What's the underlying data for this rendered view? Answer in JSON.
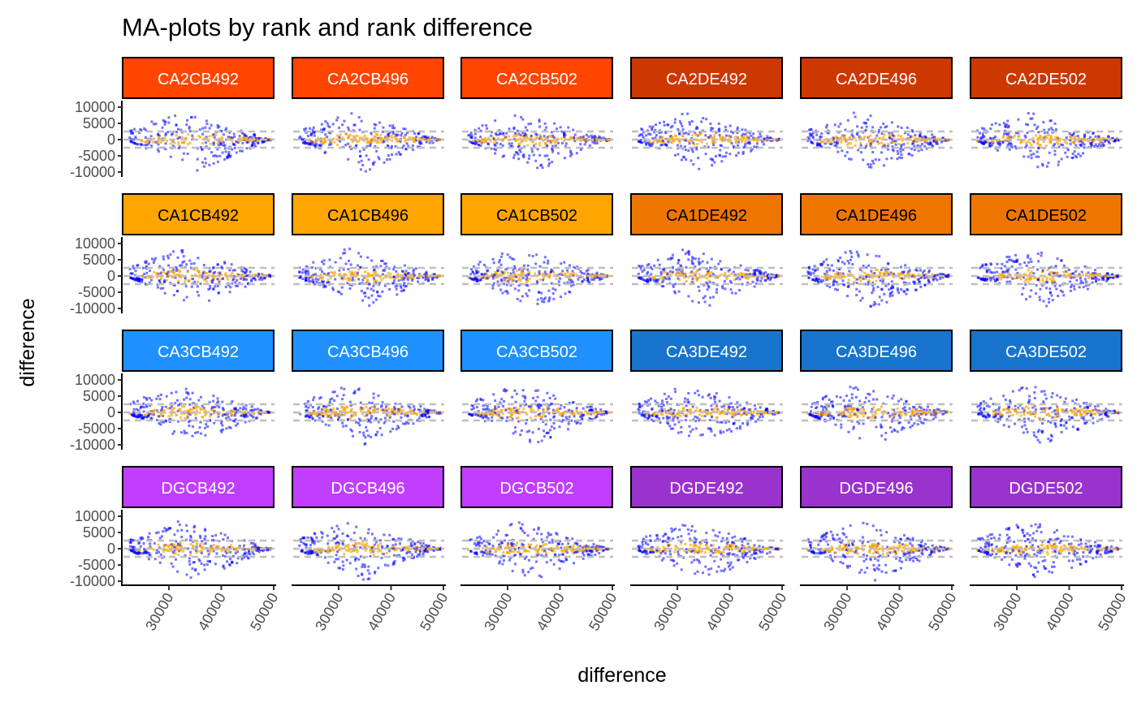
{
  "chart_data": {
    "type": "scatter",
    "title": "MA-plots by rank and rank difference",
    "xlabel": "difference",
    "ylabel": "difference",
    "xlim": [
      21000,
      50500
    ],
    "ylim": [
      -11500,
      11500
    ],
    "x_ticks": [
      30000,
      40000,
      50000
    ],
    "y_ticks": [
      10000,
      5000,
      0,
      -5000,
      -10000
    ],
    "hlines": [
      2500,
      0,
      -2500
    ],
    "grid": false,
    "point_colors": {
      "sparse": "#0000FF",
      "dense": "#FFA500"
    },
    "rows": [
      {
        "facets": [
          {
            "label": "CA2CB492",
            "fill": "#FF4500",
            "text": "#FFFFFF"
          },
          {
            "label": "CA2CB496",
            "fill": "#FF4500",
            "text": "#FFFFFF"
          },
          {
            "label": "CA2CB502",
            "fill": "#FF4500",
            "text": "#FFFFFF"
          },
          {
            "label": "CA2DE492",
            "fill": "#CD3700",
            "text": "#FFFFFF"
          },
          {
            "label": "CA2DE496",
            "fill": "#CD3700",
            "text": "#FFFFFF"
          },
          {
            "label": "CA2DE502",
            "fill": "#CD3700",
            "text": "#FFFFFF"
          }
        ]
      },
      {
        "facets": [
          {
            "label": "CA1CB492",
            "fill": "#FFA500",
            "text": "#000000"
          },
          {
            "label": "CA1CB496",
            "fill": "#FFA500",
            "text": "#000000"
          },
          {
            "label": "CA1CB502",
            "fill": "#FFA500",
            "text": "#000000"
          },
          {
            "label": "CA1DE492",
            "fill": "#EE7600",
            "text": "#000000"
          },
          {
            "label": "CA1DE496",
            "fill": "#EE7600",
            "text": "#000000"
          },
          {
            "label": "CA1DE502",
            "fill": "#EE7600",
            "text": "#000000"
          }
        ]
      },
      {
        "facets": [
          {
            "label": "CA3CB492",
            "fill": "#1E90FF",
            "text": "#FFFFFF"
          },
          {
            "label": "CA3CB496",
            "fill": "#1E90FF",
            "text": "#FFFFFF"
          },
          {
            "label": "CA3CB502",
            "fill": "#1E90FF",
            "text": "#FFFFFF"
          },
          {
            "label": "CA3DE492",
            "fill": "#1874CD",
            "text": "#FFFFFF"
          },
          {
            "label": "CA3DE496",
            "fill": "#1874CD",
            "text": "#FFFFFF"
          },
          {
            "label": "CA3DE502",
            "fill": "#1874CD",
            "text": "#FFFFFF"
          }
        ]
      },
      {
        "facets": [
          {
            "label": "DGCB492",
            "fill": "#BF3EFF",
            "text": "#FFFFFF"
          },
          {
            "label": "DGCB496",
            "fill": "#BF3EFF",
            "text": "#FFFFFF"
          },
          {
            "label": "DGCB502",
            "fill": "#BF3EFF",
            "text": "#FFFFFF"
          },
          {
            "label": "DGDE492",
            "fill": "#9A32CD",
            "text": "#FFFFFF"
          },
          {
            "label": "DGDE496",
            "fill": "#9A32CD",
            "text": "#FFFFFF"
          },
          {
            "label": "DGDE502",
            "fill": "#9A32CD",
            "text": "#FFFFFF"
          }
        ]
      }
    ]
  }
}
